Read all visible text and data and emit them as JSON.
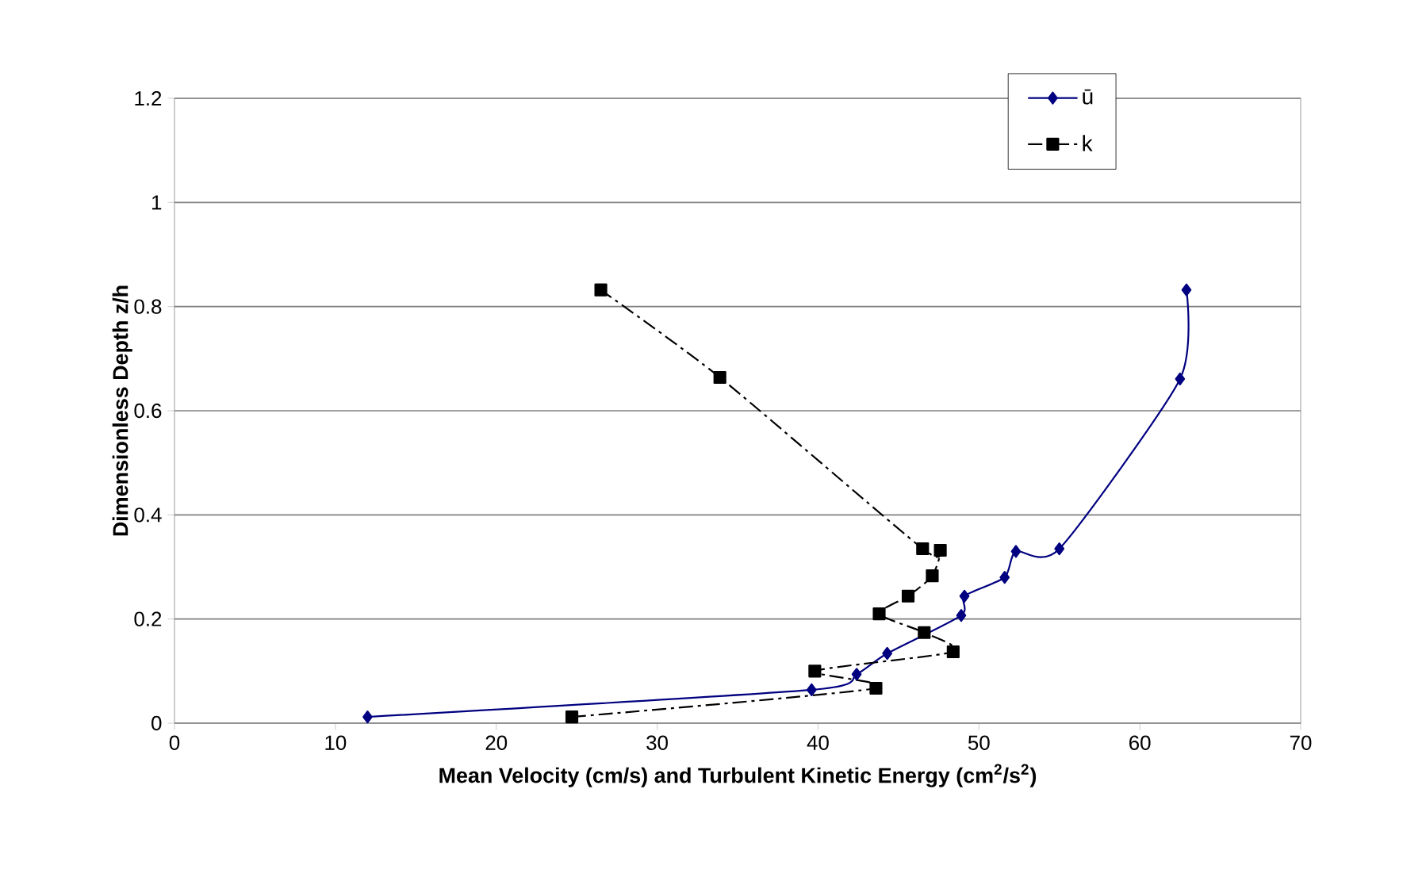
{
  "chart_data": {
    "type": "line",
    "xlabel": "**Mean Velocity (cm/s) and Turbulent Kinetic Energy (cm$^{2}$/s$^{2}$)**",
    "ylabel": "Dimensionless Depth z/h",
    "xlim": [
      0,
      70
    ],
    "xticks": [
      0,
      10,
      20,
      30,
      40,
      50,
      60,
      70
    ],
    "ylim": [
      0,
      1.2
    ],
    "yticks": [
      0,
      {
        "value": 0.2,
        "label": "0.2"
      },
      {
        "value": 0.4,
        "label": "0.4"
      },
      {
        "value": 0.6,
        "label": "0.6"
      },
      {
        "value": 0.8,
        "label": "0.8"
      },
      1,
      {
        "value": 1.2,
        "label": "1.2"
      }
    ],
    "grid": "y",
    "legend": "top right",
    "series": [
      {
        "name": "ū",
        "color": "#000080",
        "marker": "diamond",
        "line_style": "solid",
        "x": [
          12.0,
          39.6,
          42.4,
          44.3,
          48.9,
          49.1,
          51.6,
          52.3,
          55.0,
          62.5,
          62.9
        ],
        "values": [
          0.012,
          0.064,
          0.094,
          0.134,
          0.207,
          0.244,
          0.28,
          0.33,
          0.335,
          0.661,
          0.832
        ]
      },
      {
        "name": "k",
        "color": "#000000",
        "marker": "square",
        "line_style": "dashdot",
        "x": [
          24.7,
          43.6,
          39.8,
          48.4,
          46.6,
          43.8,
          45.6,
          47.1,
          47.6,
          46.5,
          33.9,
          26.5
        ],
        "values": [
          0.012,
          0.067,
          0.1,
          0.137,
          0.174,
          0.21,
          0.244,
          0.283,
          0.332,
          0.335,
          0.664,
          0.832
        ]
      }
    ]
  }
}
